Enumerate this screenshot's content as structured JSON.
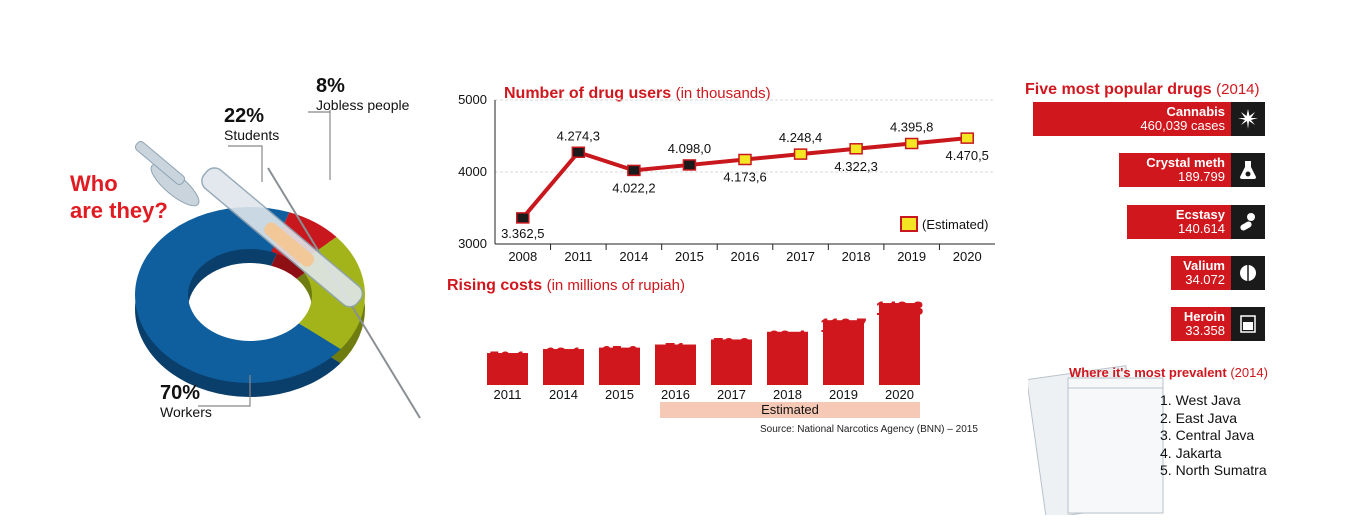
{
  "who": {
    "line1": "Who",
    "line2": "are they?"
  },
  "segments": [
    {
      "pct": "8%",
      "label": "Jobless people",
      "value": 8,
      "color": "#c8171d"
    },
    {
      "pct": "22%",
      "label": "Students",
      "value": 22,
      "color": "#a3b41a"
    },
    {
      "pct": "70%",
      "label": "Workers",
      "value": 70,
      "color": "#0f5f9f"
    }
  ],
  "users": {
    "title": "Number of drug users",
    "title_sub": "(in thousands)",
    "legend": "(Estimated)"
  },
  "costs": {
    "title": "Rising costs",
    "title_sub": "(in millions of rupiah)",
    "estimated_label": "Estimated"
  },
  "source": "Source: National Narcotics Agency (BNN) – 2015",
  "popular": {
    "title": "Five most popular drugs",
    "title_sub": "(2014)",
    "items": [
      {
        "name": "Cannabis",
        "value": "460,039 cases",
        "icon": "cannabis-leaf-icon"
      },
      {
        "name": "Crystal meth",
        "value": "189.799",
        "icon": "lab-flask-icon"
      },
      {
        "name": "Ecstasy",
        "value": "140.614",
        "icon": "pills-icon"
      },
      {
        "name": "Valium",
        "value": "34.072",
        "icon": "tablet-icon"
      },
      {
        "name": "Heroin",
        "value": "33.358",
        "icon": "powder-bag-icon"
      }
    ]
  },
  "prevalent": {
    "title": "Where it's most prevalent",
    "title_sub": "(2014)",
    "items": [
      "1. West Java",
      "2. East Java",
      "3. Central Java",
      "4. Jakarta",
      "5. North Sumatra"
    ]
  },
  "chart_data": [
    {
      "type": "pie",
      "title": "Who are they?",
      "categories": [
        "Jobless people",
        "Students",
        "Workers"
      ],
      "values": [
        8,
        22,
        70
      ]
    },
    {
      "type": "line",
      "title": "Number of drug users (in thousands)",
      "x": [
        "2008",
        "2011",
        "2014",
        "2015",
        "2016",
        "2017",
        "2018",
        "2019",
        "2020"
      ],
      "values": [
        3362.5,
        4274.3,
        4022.2,
        4098.0,
        4173.6,
        4248.4,
        4322.3,
        4395.8,
        4470.5
      ],
      "labels": [
        "3.362,5",
        "4.274,3",
        "4.022,2",
        "4.098,0",
        "4.173,6",
        "4.248,4",
        "4.322,3",
        "4.395,8",
        "4.470,5"
      ],
      "estimated": [
        false,
        false,
        false,
        false,
        true,
        true,
        true,
        true,
        true
      ],
      "yticks": [
        "3000",
        "4000",
        "5000"
      ],
      "ylim": [
        3000,
        5000
      ],
      "grid": true,
      "legend": "(Estimated)",
      "legend_position": "bottom-right",
      "line_color": "#c8171d"
    },
    {
      "type": "bar",
      "title": "Rising costs (in millions of rupiah)",
      "categories": [
        "2011",
        "2014",
        "2015",
        "2016",
        "2017",
        "2018",
        "2019",
        "2020"
      ],
      "values": [
        56.1,
        63.1,
        65.6,
        71,
        79.9,
        93.4,
        113.7,
        143.8
      ],
      "labels": [
        "56.1",
        "63.1",
        "65.6",
        "71",
        "79.9",
        "93.4",
        "113.7",
        "143.8"
      ],
      "estimated": [
        false,
        false,
        false,
        true,
        true,
        true,
        true,
        true
      ],
      "bar_color": "#d0171d"
    },
    {
      "type": "bar",
      "title": "Five most popular drugs (2014)",
      "categories": [
        "Cannabis",
        "Crystal meth",
        "Ecstasy",
        "Valium",
        "Heroin"
      ],
      "values": [
        460039,
        189799,
        140614,
        34072,
        33358
      ],
      "bar_color": "#d0171d"
    }
  ]
}
